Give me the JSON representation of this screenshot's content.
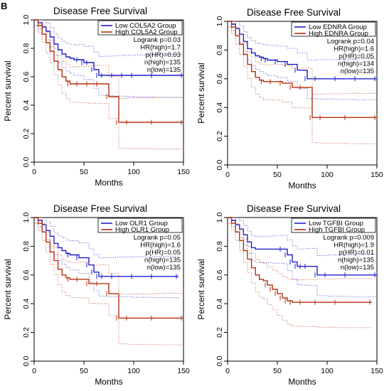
{
  "panel_label": "B",
  "colors": {
    "low": "#1f1fd1",
    "high": "#b5300f",
    "axis": "#000000"
  },
  "chart_data": [
    {
      "type": "line",
      "title": "Disease Free Survival",
      "xlabel": "Months",
      "ylabel": "Percent survival",
      "xlim": [
        0,
        150
      ],
      "ylim": [
        0,
        1
      ],
      "xticks": [
        "0",
        "50",
        "100",
        "150"
      ],
      "yticks": [
        "0.0",
        "0.2",
        "0.4",
        "0.6",
        "0.8",
        "1.0"
      ],
      "legend": {
        "position": "top-right",
        "entries": [
          "Low COL5A2 Group",
          "High COL5A2 Group"
        ],
        "stats": [
          "Logrank p=0.03",
          "HR(high)=1.7",
          "p(HR)=0.03",
          "n(high)=135",
          "n(low)=135"
        ]
      },
      "series": [
        {
          "name": "Low COL5A2 Group",
          "color": "#1f1fd1",
          "x": [
            0,
            4,
            8,
            12,
            16,
            20,
            24,
            28,
            32,
            36,
            40,
            45,
            50,
            55,
            60,
            65,
            70,
            80,
            90,
            100,
            120,
            150
          ],
          "y": [
            1.0,
            0.98,
            0.95,
            0.92,
            0.88,
            0.83,
            0.79,
            0.76,
            0.74,
            0.73,
            0.72,
            0.72,
            0.7,
            0.7,
            0.65,
            0.61,
            0.61,
            0.61,
            0.61,
            0.61,
            0.61,
            0.61
          ]
        },
        {
          "name": "High COL5A2 Group",
          "color": "#b5300f",
          "x": [
            0,
            4,
            8,
            12,
            16,
            20,
            24,
            28,
            32,
            36,
            45,
            55,
            65,
            75,
            85,
            95,
            120,
            150
          ],
          "y": [
            1.0,
            0.96,
            0.9,
            0.84,
            0.78,
            0.71,
            0.65,
            0.6,
            0.57,
            0.55,
            0.55,
            0.55,
            0.55,
            0.46,
            0.28,
            0.28,
            0.28,
            0.28
          ]
        }
      ]
    },
    {
      "type": "line",
      "title": "Disease Free Survival",
      "xlabel": "Months",
      "ylabel": "Percent survival",
      "xlim": [
        0,
        150
      ],
      "ylim": [
        0,
        1
      ],
      "xticks": [
        "0",
        "50",
        "100",
        "150"
      ],
      "yticks": [
        "0.0",
        "0.2",
        "0.4",
        "0.6",
        "0.8",
        "1.0"
      ],
      "legend": {
        "position": "top-right",
        "entries": [
          "Low EDNRA Group",
          "High EDNRA Group"
        ],
        "stats": [
          "Logrank p=0.04",
          "HR(high)=1.6",
          "p(HR)=0.05",
          "n(high)=134",
          "n(low)=135"
        ]
      },
      "series": [
        {
          "name": "Low EDNRA Group",
          "color": "#1f1fd1",
          "x": [
            0,
            4,
            8,
            12,
            16,
            20,
            24,
            28,
            32,
            36,
            40,
            50,
            60,
            70,
            80,
            90,
            110,
            130,
            150
          ],
          "y": [
            1.0,
            0.98,
            0.95,
            0.91,
            0.86,
            0.81,
            0.78,
            0.76,
            0.75,
            0.74,
            0.73,
            0.72,
            0.7,
            0.66,
            0.6,
            0.6,
            0.6,
            0.6,
            0.6
          ]
        },
        {
          "name": "High EDNRA Group",
          "color": "#b5300f",
          "x": [
            0,
            4,
            8,
            12,
            16,
            20,
            24,
            28,
            32,
            36,
            45,
            55,
            65,
            75,
            85,
            95,
            120,
            150
          ],
          "y": [
            1.0,
            0.96,
            0.9,
            0.84,
            0.77,
            0.7,
            0.65,
            0.61,
            0.59,
            0.58,
            0.58,
            0.57,
            0.54,
            0.54,
            0.33,
            0.33,
            0.33,
            0.33
          ]
        }
      ]
    },
    {
      "type": "line",
      "title": "Disease Free Survival",
      "xlabel": "Months",
      "ylabel": "Percent survival",
      "xlim": [
        0,
        150
      ],
      "ylim": [
        0,
        1
      ],
      "xticks": [
        "0",
        "50",
        "100",
        "150"
      ],
      "yticks": [
        "0.0",
        "0.2",
        "0.4",
        "0.6",
        "0.8",
        "1.0"
      ],
      "legend": {
        "position": "top-right",
        "entries": [
          "Low OLR1 Group",
          "High OLR1 Group"
        ],
        "stats": [
          "Logrank p=0.05",
          "HR(high)=1.6",
          "p(HR)=0.05",
          "n(high)=135",
          "n(low)=135"
        ]
      },
      "series": [
        {
          "name": "Low OLR1 Group",
          "color": "#1f1fd1",
          "x": [
            0,
            4,
            8,
            12,
            16,
            20,
            24,
            28,
            32,
            36,
            45,
            55,
            60,
            65,
            70,
            80,
            100,
            120,
            145
          ],
          "y": [
            1.0,
            0.98,
            0.95,
            0.91,
            0.87,
            0.82,
            0.79,
            0.77,
            0.75,
            0.74,
            0.72,
            0.67,
            0.62,
            0.59,
            0.59,
            0.59,
            0.59,
            0.59,
            0.59
          ]
        },
        {
          "name": "High OLR1 Group",
          "color": "#b5300f",
          "x": [
            0,
            4,
            8,
            12,
            16,
            20,
            24,
            28,
            32,
            36,
            45,
            55,
            65,
            75,
            85,
            95,
            120,
            150
          ],
          "y": [
            1.0,
            0.96,
            0.9,
            0.83,
            0.76,
            0.7,
            0.64,
            0.6,
            0.58,
            0.57,
            0.57,
            0.54,
            0.54,
            0.47,
            0.3,
            0.3,
            0.3,
            0.3
          ]
        }
      ]
    },
    {
      "type": "line",
      "title": "Disease Free Survival",
      "xlabel": "Months",
      "ylabel": "Percent survival",
      "xlim": [
        0,
        150
      ],
      "ylim": [
        0,
        1
      ],
      "xticks": [
        "0",
        "50",
        "100",
        "150"
      ],
      "yticks": [
        "0.0",
        "0.2",
        "0.4",
        "0.6",
        "0.8",
        "1.0"
      ],
      "legend": {
        "position": "top-right",
        "entries": [
          "Low TGFBI Group",
          "High TGFBI Group"
        ],
        "stats": [
          "Logrank p=0.009",
          "HR(high)=1.9",
          "p(HR)=0.01",
          "n(high)=135",
          "n(low)=135"
        ]
      },
      "series": [
        {
          "name": "Low TGFBI Group",
          "color": "#1f1fd1",
          "x": [
            0,
            4,
            8,
            12,
            16,
            20,
            24,
            28,
            35,
            45,
            55,
            60,
            65,
            70,
            75,
            80,
            90,
            100,
            120,
            150
          ],
          "y": [
            1.0,
            0.98,
            0.95,
            0.92,
            0.88,
            0.83,
            0.79,
            0.78,
            0.78,
            0.78,
            0.78,
            0.74,
            0.69,
            0.66,
            0.66,
            0.66,
            0.6,
            0.6,
            0.6,
            0.6
          ]
        },
        {
          "name": "High TGFBI Group",
          "color": "#b5300f",
          "x": [
            0,
            4,
            8,
            12,
            16,
            20,
            24,
            28,
            32,
            36,
            40,
            45,
            50,
            55,
            60,
            65,
            75,
            90,
            110,
            145
          ],
          "y": [
            1.0,
            0.96,
            0.9,
            0.84,
            0.77,
            0.71,
            0.65,
            0.6,
            0.57,
            0.56,
            0.53,
            0.5,
            0.47,
            0.44,
            0.42,
            0.41,
            0.41,
            0.41,
            0.41,
            0.41
          ]
        }
      ]
    }
  ]
}
